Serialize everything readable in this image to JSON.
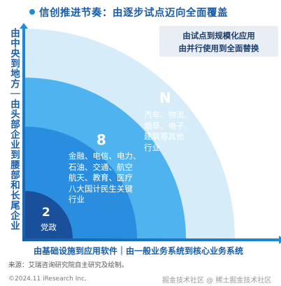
{
  "title": "信创推进节奏：由逐步试点迈向全面覆盖",
  "left_axis_label": "由中央到地方｜由头部企业到腰部和长尾企业",
  "callout": {
    "line1": "由试点到规模化应用",
    "line2": "由并行使用到全面替换"
  },
  "rings": [
    {
      "label": "2",
      "text_lines": [
        "党政"
      ],
      "color": "#1a4f9c"
    },
    {
      "label": "8",
      "text_lines": [
        "金融、电信、电力、",
        "石油、交通、航空",
        "航天、教育、医疗",
        "八大国计民生关键",
        "行业"
      ],
      "color": "#2a8ee0"
    },
    {
      "label": "N",
      "text_lines": [
        "汽车、物流、",
        "烟草、电子、",
        "建筑等其他",
        "行业"
      ],
      "color": "#4fb3ef"
    }
  ],
  "outer_ring_color": "#d6edf9",
  "bottom_axis_label": "由基础设施到应用软件｜由一般业务系统到核心业务系统",
  "source": "来源：艾瑞咨询研究院自主研究及绘制。",
  "copyright": "©2024.11 iResearch Inc.",
  "watermark": "掘金技术社区 @ 稀土掘金技术社区"
}
